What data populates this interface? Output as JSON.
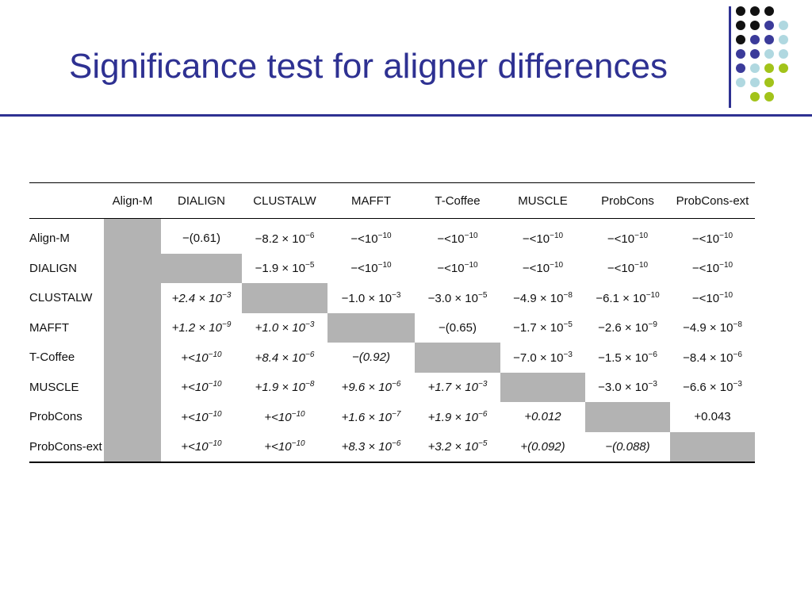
{
  "slide": {
    "title": "Significance test for aligner differences"
  },
  "decoration": {
    "dots": [
      [
        "#111111",
        "#111111",
        "#111111",
        null
      ],
      [
        "#111111",
        "#111111",
        "#3b3b9a",
        "#b0d8e0"
      ],
      [
        "#111111",
        "#3b3b9a",
        "#3b3b9a",
        "#b0d8e0"
      ],
      [
        "#3b3b9a",
        "#3b3b9a",
        "#b0d8e0",
        "#b0d8e0"
      ],
      [
        "#3b3b9a",
        "#b0d8e0",
        "#a2c31a",
        "#a2c31a"
      ],
      [
        "#b0d8e0",
        "#b0d8e0",
        "#a2c31a",
        null
      ],
      [
        null,
        "#a2c31a",
        "#a2c31a",
        null
      ]
    ]
  },
  "table": {
    "columns": [
      "",
      "Align-M",
      "DIALIGN",
      "CLUSTALW",
      "MAFFT",
      "T-Coffee",
      "MUSCLE",
      "ProbCons",
      "ProbCons-ext"
    ],
    "rows": [
      {
        "label": "Align-M",
        "cells": [
          {
            "shade": true
          },
          {
            "pre": "−(0.61)"
          },
          {
            "pre": "−8.2 × 10",
            "exp": "−6"
          },
          {
            "pre": "−<10",
            "exp": "−10"
          },
          {
            "pre": "−<10",
            "exp": "−10"
          },
          {
            "pre": "−<10",
            "exp": "−10"
          },
          {
            "pre": "−<10",
            "exp": "−10"
          },
          {
            "pre": "−<10",
            "exp": "−10"
          }
        ]
      },
      {
        "label": "DIALIGN",
        "cells": [
          {
            "shade": true
          },
          {
            "shade": true
          },
          {
            "pre": "−1.9 × 10",
            "exp": "−5"
          },
          {
            "pre": "−<10",
            "exp": "−10"
          },
          {
            "pre": "−<10",
            "exp": "−10"
          },
          {
            "pre": "−<10",
            "exp": "−10"
          },
          {
            "pre": "−<10",
            "exp": "−10"
          },
          {
            "pre": "−<10",
            "exp": "−10"
          }
        ]
      },
      {
        "label": "CLUSTALW",
        "cells": [
          {
            "shade": true
          },
          {
            "pre": "+2.4 × 10",
            "exp": "−3",
            "italic": true
          },
          {
            "shade": true
          },
          {
            "pre": "−1.0 × 10",
            "exp": "−3"
          },
          {
            "pre": "−3.0 × 10",
            "exp": "−5"
          },
          {
            "pre": "−4.9 × 10",
            "exp": "−8"
          },
          {
            "pre": "−6.1 × 10",
            "exp": "−10"
          },
          {
            "pre": "−<10",
            "exp": "−10"
          }
        ]
      },
      {
        "label": "MAFFT",
        "cells": [
          {
            "shade": true
          },
          {
            "pre": "+1.2 × 10",
            "exp": "−9",
            "italic": true
          },
          {
            "pre": "+1.0 × 10",
            "exp": "−3",
            "italic": true
          },
          {
            "shade": true
          },
          {
            "pre": "−(0.65)"
          },
          {
            "pre": "−1.7 × 10",
            "exp": "−5"
          },
          {
            "pre": "−2.6 × 10",
            "exp": "−9"
          },
          {
            "pre": "−4.9 × 10",
            "exp": "−8"
          }
        ]
      },
      {
        "label": "T-Coffee",
        "cells": [
          {
            "shade": true
          },
          {
            "pre": "+<10",
            "exp": "−10",
            "italic": true
          },
          {
            "pre": "+8.4 × 10",
            "exp": "−6",
            "italic": true
          },
          {
            "pre": "−(0.92)",
            "italic": true
          },
          {
            "shade": true
          },
          {
            "pre": "−7.0 × 10",
            "exp": "−3"
          },
          {
            "pre": "−1.5 × 10",
            "exp": "−6"
          },
          {
            "pre": "−8.4 × 10",
            "exp": "−6"
          }
        ]
      },
      {
        "label": "MUSCLE",
        "cells": [
          {
            "shade": true
          },
          {
            "pre": "+<10",
            "exp": "−10",
            "italic": true
          },
          {
            "pre": "+1.9 × 10",
            "exp": "−8",
            "italic": true
          },
          {
            "pre": "+9.6 × 10",
            "exp": "−6",
            "italic": true
          },
          {
            "pre": "+1.7 × 10",
            "exp": "−3",
            "italic": true
          },
          {
            "shade": true
          },
          {
            "pre": "−3.0 × 10",
            "exp": "−3"
          },
          {
            "pre": "−6.6 × 10",
            "exp": "−3"
          }
        ]
      },
      {
        "label": "ProbCons",
        "cells": [
          {
            "shade": true
          },
          {
            "pre": "+<10",
            "exp": "−10",
            "italic": true
          },
          {
            "pre": "+<10",
            "exp": "−10",
            "italic": true
          },
          {
            "pre": "+1.6 × 10",
            "exp": "−7",
            "italic": true
          },
          {
            "pre": "+1.9 × 10",
            "exp": "−6",
            "italic": true
          },
          {
            "pre": "+0.012",
            "italic": true
          },
          {
            "shade": true
          },
          {
            "pre": "+0.043"
          }
        ]
      },
      {
        "label": "ProbCons-ext",
        "cells": [
          {
            "shade": true
          },
          {
            "pre": "+<10",
            "exp": "−10",
            "italic": true
          },
          {
            "pre": "+<10",
            "exp": "−10",
            "italic": true
          },
          {
            "pre": "+8.3 × 10",
            "exp": "−6",
            "italic": true
          },
          {
            "pre": "+3.2 × 10",
            "exp": "−5",
            "italic": true
          },
          {
            "pre": "+(0.092)",
            "italic": true
          },
          {
            "pre": "−(0.088)",
            "italic": true
          },
          {
            "shade": true
          }
        ]
      }
    ]
  }
}
